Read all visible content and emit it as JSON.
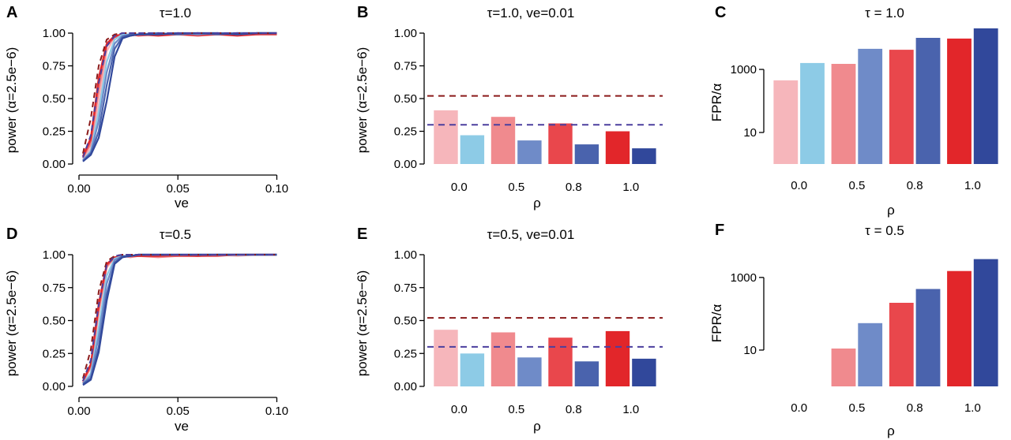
{
  "chart_data": [
    {
      "panel": "A",
      "type": "line",
      "title": "τ=1.0",
      "xlabel": "ve",
      "ylabel": "power (α=2.5e−6)",
      "xlim": [
        0,
        0.105
      ],
      "ylim": [
        0,
        1
      ],
      "xticks": [
        0.0,
        0.05,
        0.1
      ],
      "xtick_labels": [
        "0.00",
        "0.05",
        "0.10"
      ],
      "yticks": [
        0,
        0.25,
        0.5,
        0.75,
        1.0
      ],
      "ytick_labels": [
        "0.00",
        "0.25",
        "0.50",
        "0.75",
        "1.00"
      ],
      "x": [
        0.002,
        0.006,
        0.01,
        0.014,
        0.018,
        0.022,
        0.026,
        0.03,
        0.04,
        0.05,
        0.06,
        0.07,
        0.08,
        0.09,
        0.1
      ],
      "series": [
        {
          "name": "rho 0.0",
          "color": "#f6b6bb",
          "values": [
            0.04,
            0.12,
            0.45,
            0.86,
            0.97,
            0.99,
            0.99,
            0.99,
            0.99,
            1.0,
            0.99,
            1.0,
            0.99,
            1.0,
            1.0
          ]
        },
        {
          "name": "rho 0.5",
          "color": "#f08a8e",
          "values": [
            0.05,
            0.15,
            0.55,
            0.9,
            0.97,
            0.99,
            0.98,
            0.99,
            0.99,
            0.99,
            1.0,
            0.99,
            0.99,
            1.0,
            1.0
          ]
        },
        {
          "name": "rho 0.8",
          "color": "#e9474c",
          "values": [
            0.05,
            0.18,
            0.62,
            0.91,
            0.97,
            0.98,
            0.99,
            0.98,
            0.99,
            0.99,
            0.98,
            0.99,
            1.0,
            0.99,
            1.0
          ]
        },
        {
          "name": "rho 1.0",
          "color": "#e2262a",
          "values": [
            0.06,
            0.2,
            0.66,
            0.92,
            0.98,
            0.99,
            0.98,
            0.99,
            0.98,
            0.99,
            0.99,
            0.99,
            0.98,
            0.99,
            0.99
          ]
        },
        {
          "name": "rho 0.0 (blue)",
          "color": "#8dcbe6",
          "values": [
            0.03,
            0.1,
            0.4,
            0.78,
            0.95,
            0.99,
            0.99,
            0.99,
            1.0,
            0.99,
            1.0,
            1.0,
            0.99,
            1.0,
            1.0
          ]
        },
        {
          "name": "rho 0.5 (blue)",
          "color": "#6f8bc8",
          "values": [
            0.03,
            0.09,
            0.33,
            0.7,
            0.92,
            0.98,
            0.99,
            0.99,
            0.99,
            1.0,
            0.99,
            1.0,
            1.0,
            1.0,
            1.0
          ]
        },
        {
          "name": "rho 0.8 (blue)",
          "color": "#4a63ad",
          "values": [
            0.02,
            0.08,
            0.25,
            0.6,
            0.88,
            0.97,
            0.99,
            0.99,
            1.0,
            0.99,
            1.0,
            0.99,
            1.0,
            1.0,
            1.0
          ]
        },
        {
          "name": "rho 1.0 (blue)",
          "color": "#31489b",
          "values": [
            0.02,
            0.07,
            0.2,
            0.48,
            0.82,
            0.96,
            0.98,
            0.99,
            0.99,
            1.0,
            1.0,
            1.0,
            0.99,
            1.0,
            1.0
          ]
        }
      ],
      "reference_lines": [
        {
          "color": "#8b1a1a",
          "style": "dashed",
          "values": [
            0.08,
            0.35,
            0.75,
            0.95,
            0.99,
            1.0,
            1.0,
            1.0,
            1.0,
            1.0,
            1.0,
            1.0,
            1.0,
            1.0,
            1.0
          ]
        },
        {
          "color": "#4b3f9e",
          "style": "dashed",
          "values": [
            0.05,
            0.22,
            0.62,
            0.9,
            0.98,
            1.0,
            1.0,
            1.0,
            1.0,
            1.0,
            1.0,
            1.0,
            1.0,
            1.0,
            1.0
          ]
        }
      ]
    },
    {
      "panel": "B",
      "type": "bar",
      "title": "τ=1.0, ve=0.01",
      "xlabel": "ρ",
      "ylabel": "power (α=2.5e−6)",
      "ylim": [
        0,
        1
      ],
      "yticks": [
        0,
        0.25,
        0.5,
        0.75,
        1.0
      ],
      "ytick_labels": [
        "0.00",
        "0.25",
        "0.50",
        "0.75",
        "1.00"
      ],
      "categories": [
        "0.0",
        "0.5",
        "0.8",
        "1.0"
      ],
      "series": [
        {
          "name": "red",
          "colors": [
            "#f6b6bb",
            "#f08a8e",
            "#e9474c",
            "#e2262a"
          ],
          "values": [
            0.41,
            0.36,
            0.31,
            0.25
          ]
        },
        {
          "name": "blue",
          "colors": [
            "#8dcbe6",
            "#6f8bc8",
            "#4a63ad",
            "#31489b"
          ],
          "values": [
            0.22,
            0.18,
            0.15,
            0.12
          ]
        }
      ],
      "hlines": [
        {
          "y": 0.52,
          "color": "#8b1a1a",
          "style": "dashed"
        },
        {
          "y": 0.3,
          "color": "#4b3f9e",
          "style": "dashed"
        }
      ]
    },
    {
      "panel": "C",
      "type": "bar",
      "title": "τ = 1.0",
      "xlabel": "ρ",
      "ylabel": "FPR/α",
      "yscale": "log",
      "ylim": [
        1,
        20000
      ],
      "yticks": [
        10,
        1000
      ],
      "ytick_labels": [
        "10",
        "1000"
      ],
      "categories": [
        "0.0",
        "0.5",
        "0.8",
        "1.0"
      ],
      "series": [
        {
          "name": "red",
          "colors": [
            "#f6b6bb",
            "#f08a8e",
            "#e9474c",
            "#e2262a"
          ],
          "values": [
            450,
            1500,
            4200,
            9500
          ]
        },
        {
          "name": "blue",
          "colors": [
            "#8dcbe6",
            "#6f8bc8",
            "#4a63ad",
            "#31489b"
          ],
          "values": [
            1600,
            4500,
            10000,
            20000
          ]
        }
      ]
    },
    {
      "panel": "D",
      "type": "line",
      "title": "τ=0.5",
      "xlabel": "ve",
      "ylabel": "power (α=2.5e−6)",
      "xlim": [
        0,
        0.105
      ],
      "ylim": [
        0,
        1
      ],
      "xticks": [
        0.0,
        0.05,
        0.1
      ],
      "xtick_labels": [
        "0.00",
        "0.05",
        "0.10"
      ],
      "yticks": [
        0,
        0.25,
        0.5,
        0.75,
        1.0
      ],
      "ytick_labels": [
        "0.00",
        "0.25",
        "0.50",
        "0.75",
        "1.00"
      ],
      "x": [
        0.002,
        0.006,
        0.01,
        0.014,
        0.018,
        0.022,
        0.026,
        0.03,
        0.04,
        0.05,
        0.06,
        0.07,
        0.08,
        0.09,
        0.1
      ],
      "series": [
        {
          "name": "rho 0.0",
          "color": "#f6b6bb",
          "values": [
            0.03,
            0.14,
            0.55,
            0.9,
            0.98,
            0.98,
            0.99,
            0.99,
            0.99,
            0.99,
            1.0,
            1.0,
            0.99,
            1.0,
            1.0
          ]
        },
        {
          "name": "rho 0.5",
          "color": "#f08a8e",
          "values": [
            0.03,
            0.15,
            0.58,
            0.91,
            0.98,
            0.99,
            0.98,
            0.99,
            0.98,
            0.99,
            0.99,
            1.0,
            1.0,
            1.0,
            1.0
          ]
        },
        {
          "name": "rho 0.8",
          "color": "#e9474c",
          "values": [
            0.04,
            0.16,
            0.6,
            0.92,
            0.98,
            0.99,
            0.99,
            0.99,
            0.99,
            0.99,
            0.99,
            0.99,
            1.0,
            1.0,
            1.0
          ]
        },
        {
          "name": "rho 1.0",
          "color": "#e2262a",
          "values": [
            0.04,
            0.17,
            0.63,
            0.93,
            0.98,
            0.99,
            0.99,
            0.99,
            0.99,
            1.0,
            0.99,
            1.0,
            1.0,
            1.0,
            1.0
          ]
        },
        {
          "name": "rho 0.0 (blue)",
          "color": "#8dcbe6",
          "values": [
            0.02,
            0.1,
            0.45,
            0.84,
            0.97,
            0.99,
            0.99,
            1.0,
            1.0,
            1.0,
            1.0,
            1.0,
            1.0,
            1.0,
            1.0
          ]
        },
        {
          "name": "rho 0.5 (blue)",
          "color": "#6f8bc8",
          "values": [
            0.02,
            0.08,
            0.38,
            0.78,
            0.96,
            0.99,
            0.99,
            1.0,
            1.0,
            1.0,
            1.0,
            1.0,
            1.0,
            1.0,
            1.0
          ]
        },
        {
          "name": "rho 0.8 (blue)",
          "color": "#4a63ad",
          "values": [
            0.02,
            0.06,
            0.3,
            0.7,
            0.94,
            0.99,
            0.99,
            1.0,
            1.0,
            1.0,
            1.0,
            1.0,
            1.0,
            1.0,
            1.0
          ]
        },
        {
          "name": "rho 1.0 (blue)",
          "color": "#31489b",
          "values": [
            0.01,
            0.05,
            0.26,
            0.65,
            0.93,
            0.98,
            0.99,
            1.0,
            1.0,
            1.0,
            1.0,
            1.0,
            1.0,
            1.0,
            1.0
          ]
        }
      ],
      "reference_lines": [
        {
          "color": "#8b1a1a",
          "style": "dashed",
          "values": [
            0.06,
            0.28,
            0.72,
            0.95,
            0.99,
            1.0,
            1.0,
            1.0,
            1.0,
            1.0,
            1.0,
            1.0,
            1.0,
            1.0,
            1.0
          ]
        },
        {
          "color": "#4b3f9e",
          "style": "dashed",
          "values": [
            0.04,
            0.2,
            0.62,
            0.92,
            0.99,
            1.0,
            1.0,
            1.0,
            1.0,
            1.0,
            1.0,
            1.0,
            1.0,
            1.0,
            1.0
          ]
        }
      ]
    },
    {
      "panel": "E",
      "type": "bar",
      "title": "τ=0.5, ve=0.01",
      "xlabel": "ρ",
      "ylabel": "power (α=2.5e−6)",
      "ylim": [
        0,
        1
      ],
      "yticks": [
        0,
        0.25,
        0.5,
        0.75,
        1.0
      ],
      "ytick_labels": [
        "0.00",
        "0.25",
        "0.50",
        "0.75",
        "1.00"
      ],
      "categories": [
        "0.0",
        "0.5",
        "0.8",
        "1.0"
      ],
      "series": [
        {
          "name": "red",
          "colors": [
            "#f6b6bb",
            "#f08a8e",
            "#e9474c",
            "#e2262a"
          ],
          "values": [
            0.43,
            0.41,
            0.37,
            0.42
          ]
        },
        {
          "name": "blue",
          "colors": [
            "#8dcbe6",
            "#6f8bc8",
            "#4a63ad",
            "#31489b"
          ],
          "values": [
            0.25,
            0.22,
            0.19,
            0.21
          ]
        }
      ],
      "hlines": [
        {
          "y": 0.52,
          "color": "#8b1a1a",
          "style": "dashed"
        },
        {
          "y": 0.3,
          "color": "#4b3f9e",
          "style": "dashed"
        }
      ]
    },
    {
      "panel": "F",
      "type": "bar",
      "title": "τ = 0.5",
      "xlabel": "ρ",
      "ylabel": "FPR/α",
      "yscale": "log",
      "ylim": [
        1,
        6000
      ],
      "yticks": [
        10,
        1000
      ],
      "ytick_labels": [
        "10",
        "1000"
      ],
      "categories": [
        "0.0",
        "0.5",
        "0.8",
        "1.0"
      ],
      "series": [
        {
          "name": "red",
          "colors": [
            "#f6b6bb",
            "#f08a8e",
            "#e9474c",
            "#e2262a"
          ],
          "values": [
            0,
            11,
            200,
            1500
          ]
        },
        {
          "name": "blue",
          "colors": [
            "#8dcbe6",
            "#6f8bc8",
            "#4a63ad",
            "#31489b"
          ],
          "values": [
            0,
            55,
            480,
            3200
          ]
        }
      ]
    }
  ]
}
